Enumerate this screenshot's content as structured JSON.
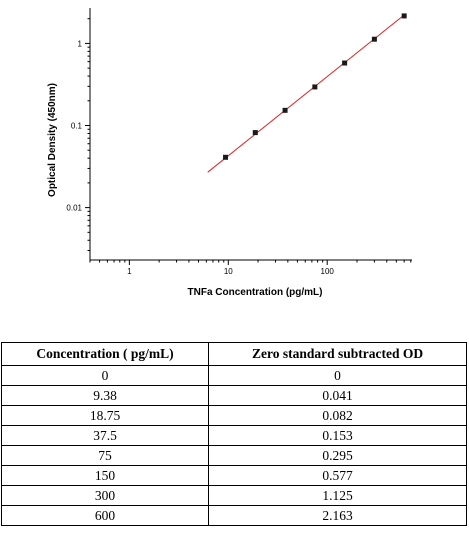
{
  "chart_data": {
    "type": "scatter",
    "title": "",
    "xlabel": "TNFa Concentration (pg/mL)",
    "ylabel": "Optical Density (450nm)",
    "xscale": "log",
    "yscale": "log",
    "xlim": [
      0.4,
      720
    ],
    "ylim": [
      0.0023,
      2.7
    ],
    "x_ticks": [
      1,
      10,
      100
    ],
    "x_tick_labels": [
      "1",
      "10",
      "100"
    ],
    "y_ticks": [
      0.01,
      0.1,
      1
    ],
    "y_tick_labels": [
      "0.01",
      "0.1",
      "1"
    ],
    "grid": false,
    "legend": false,
    "series": [
      {
        "x": [
          9.38,
          18.75,
          37.5,
          75,
          150,
          300,
          600
        ],
        "y": [
          0.041,
          0.082,
          0.153,
          0.295,
          0.577,
          1.125,
          2.163
        ],
        "color": "#1a1a1a"
      }
    ],
    "fit_line": {
      "x": [
        6.2,
        600
      ],
      "y": [
        0.027,
        2.22
      ],
      "color": "#e02020"
    }
  },
  "table": {
    "headers": [
      "Concentration ( pg/mL)",
      "Zero standard subtracted OD"
    ],
    "rows": [
      [
        "0",
        "0"
      ],
      [
        "9.38",
        "0.041"
      ],
      [
        "18.75",
        "0.082"
      ],
      [
        "37.5",
        "0.153"
      ],
      [
        "75",
        "0.295"
      ],
      [
        "150",
        "0.577"
      ],
      [
        "300",
        "1.125"
      ],
      [
        "600",
        "2.163"
      ]
    ]
  }
}
